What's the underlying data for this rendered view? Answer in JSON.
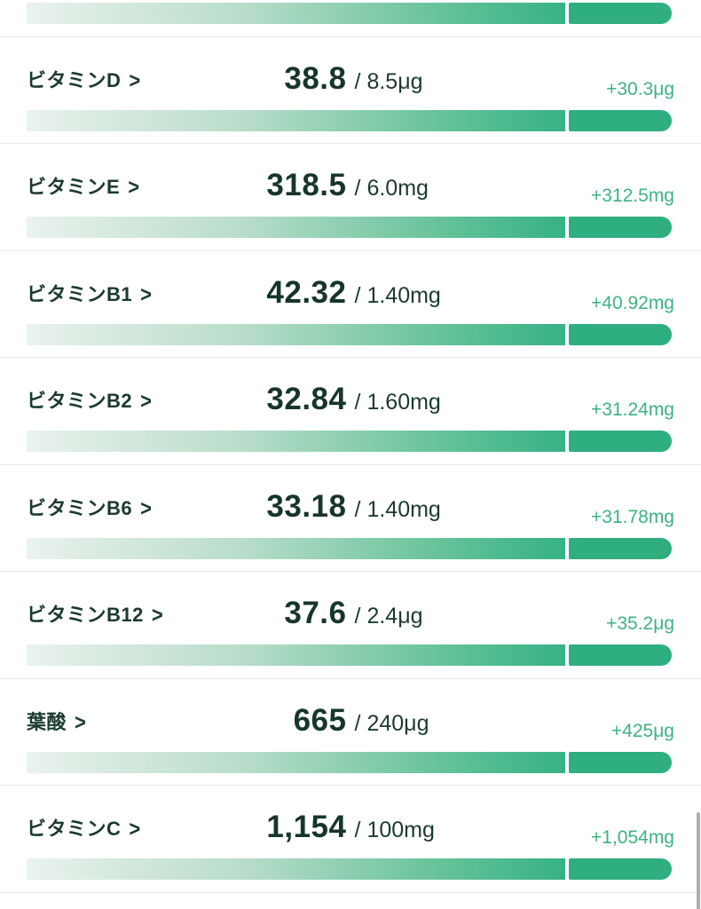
{
  "ui": {
    "chevron": ">",
    "value_separator": "/"
  },
  "colors": {
    "text_dark": "#17362a",
    "label_dark_green": "#1b3a2d",
    "accent_green": "#3cb381",
    "bar_gradient_start": "#eaf2ed",
    "bar_gradient_end": "#37b285",
    "bar_overflow_segment": "#2fae80",
    "row_divider": "#e9e9e9",
    "scrollbar": "#aeaeae"
  },
  "rows": [
    {
      "label": "ビタミンD",
      "value": "38.8",
      "target": "8.5μg",
      "delta": "+30.3μg"
    },
    {
      "label": "ビタミンE",
      "value": "318.5",
      "target": "6.0mg",
      "delta": "+312.5mg"
    },
    {
      "label": "ビタミンB1",
      "value": "42.32",
      "target": "1.40mg",
      "delta": "+40.92mg"
    },
    {
      "label": "ビタミンB2",
      "value": "32.84",
      "target": "1.60mg",
      "delta": "+31.24mg"
    },
    {
      "label": "ビタミンB6",
      "value": "33.18",
      "target": "1.40mg",
      "delta": "+31.78mg"
    },
    {
      "label": "ビタミンB12",
      "value": "37.6",
      "target": "2.4μg",
      "delta": "+35.2μg"
    },
    {
      "label": "葉酸",
      "value": "665",
      "target": "240μg",
      "delta": "+425μg"
    },
    {
      "label": "ビタミンC",
      "value": "1,154",
      "target": "100mg",
      "delta": "+1,054mg"
    }
  ]
}
